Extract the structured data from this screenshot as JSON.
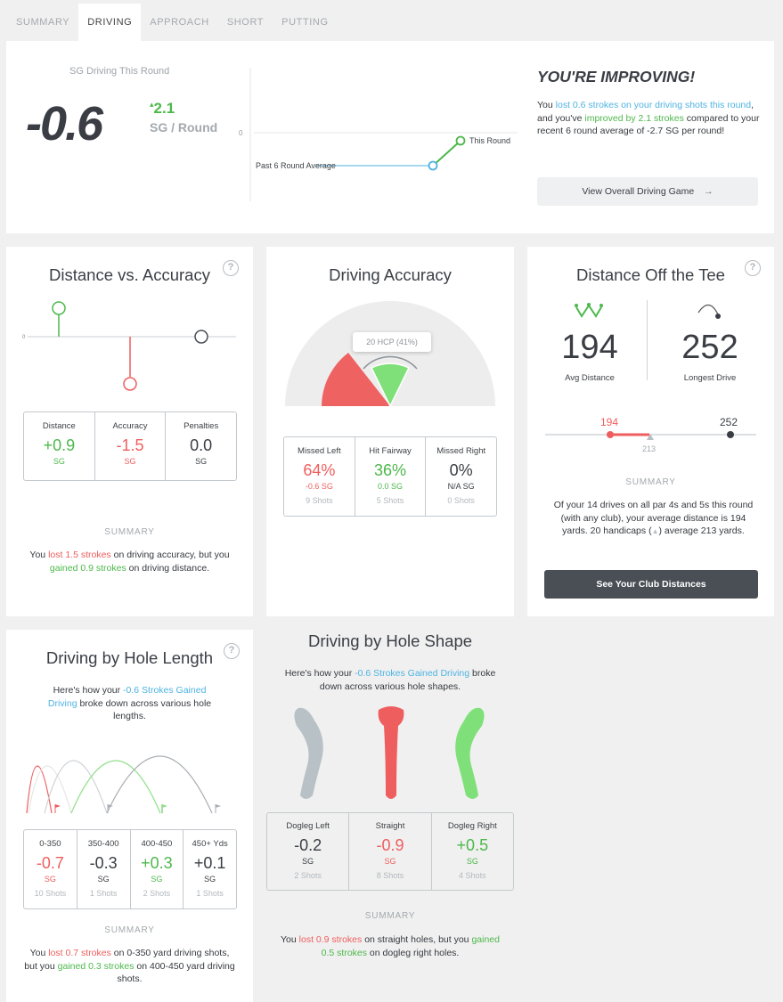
{
  "tabs": [
    "SUMMARY",
    "DRIVING",
    "APPROACH",
    "SHORT",
    "PUTTING"
  ],
  "hero": {
    "label": "SG Driving This Round",
    "value": "-0.6",
    "change_arrow": "▴",
    "change": "2.1",
    "change_unit": "SG / Round",
    "axis_zero": "0",
    "line_past_label": "Past 6 Round Average",
    "line_this_label": "This Round",
    "headline": "YOU'RE IMPROVING!",
    "msg_1": "You ",
    "msg_2": "lost 0.6 strokes on your driving shots this round",
    "msg_3": ", and you've ",
    "msg_4": "improved by 2.1 strokes",
    "msg_5": " compared to your recent 6 round average of -2.7 SG per round!",
    "button": "View Overall Driving Game",
    "button_arrow": "→"
  },
  "dist_acc": {
    "title": "Distance vs. Accuracy",
    "help": "?",
    "axis_zero": "0",
    "stats": [
      {
        "label": "Distance",
        "value": "+0.9",
        "unit": "SG"
      },
      {
        "label": "Accuracy",
        "value": "-1.5",
        "unit": "SG"
      },
      {
        "label": "Penalties",
        "value": "0.0",
        "unit": "SG"
      }
    ],
    "summary_head": "SUMMARY",
    "sum_1": "You ",
    "sum_2": "lost 1.5 strokes",
    "sum_3": " on driving accuracy, but you ",
    "sum_4": "gained 0.9 strokes",
    "sum_5": " on driving distance."
  },
  "accuracy": {
    "title": "Driving Accuracy",
    "tooltip": "20 HCP (41%)",
    "stats": [
      {
        "label": "Missed Left",
        "value": "64%",
        "sg": "-0.6 SG",
        "shots": "9 Shots"
      },
      {
        "label": "Hit Fairway",
        "value": "36%",
        "sg": "0.0 SG",
        "shots": "5 Shots"
      },
      {
        "label": "Missed Right",
        "value": "0%",
        "sg": "N/A SG",
        "shots": "0 Shots"
      }
    ]
  },
  "tee": {
    "title": "Distance Off the Tee",
    "help": "?",
    "avg_value": "194",
    "avg_label": "Avg Distance",
    "long_value": "252",
    "long_label": "Longest Drive",
    "scale_avg": "194",
    "scale_long": "252",
    "scale_hcp": "213",
    "summary_head": "SUMMARY",
    "sum_1": "Of your 14 drives on all par 4s and 5s this round (with any club), your average distance is 194 yards. 20 handicaps (",
    "sum_icon": "▲",
    "sum_2": ") average 213 yards.",
    "button": "See Your Club Distances"
  },
  "hole_length": {
    "title": "Driving by Hole Length",
    "help": "?",
    "intro_1": "Here's how your ",
    "intro_2": "-0.6 Strokes Gained Driving",
    "intro_3": " broke down across various hole lengths.",
    "stats": [
      {
        "label": "0-350",
        "value": "-0.7",
        "unit": "SG",
        "shots": "10 Shots"
      },
      {
        "label": "350-400",
        "value": "-0.3",
        "unit": "SG",
        "shots": "1 Shots"
      },
      {
        "label": "400-450",
        "value": "+0.3",
        "unit": "SG",
        "shots": "2 Shots"
      },
      {
        "label": "450+ Yds",
        "value": "+0.1",
        "unit": "SG",
        "shots": "1 Shots"
      }
    ],
    "summary_head": "SUMMARY",
    "sum_1": "You ",
    "sum_2": "lost 0.7 strokes",
    "sum_3": " on 0-350 yard driving shots, but you ",
    "sum_4": "gained 0.3 strokes",
    "sum_5": " on 400-450 yard driving shots."
  },
  "hole_shape": {
    "title": "Driving by Hole Shape",
    "intro_1": "Here's how your ",
    "intro_2": "-0.6 Strokes Gained Driving",
    "intro_3": " broke down across various hole shapes.",
    "stats": [
      {
        "label": "Dogleg Left",
        "value": "-0.2",
        "unit": "SG",
        "shots": "2 Shots"
      },
      {
        "label": "Straight",
        "value": "-0.9",
        "unit": "SG",
        "shots": "8 Shots"
      },
      {
        "label": "Dogleg Right",
        "value": "+0.5",
        "unit": "SG",
        "shots": "4 Shots"
      }
    ],
    "summary_head": "SUMMARY",
    "sum_1": "You ",
    "sum_2": "lost 0.9 strokes",
    "sum_3": " on straight holes, but you ",
    "sum_4": "gained 0.5 strokes",
    "sum_5": " on dogleg right holes."
  },
  "colors": {
    "green": "#4db84b",
    "red": "#ef5e5e",
    "blue": "#4fb3e2",
    "gray": "#9aa1a7",
    "dark_button": "#4a4e55"
  }
}
